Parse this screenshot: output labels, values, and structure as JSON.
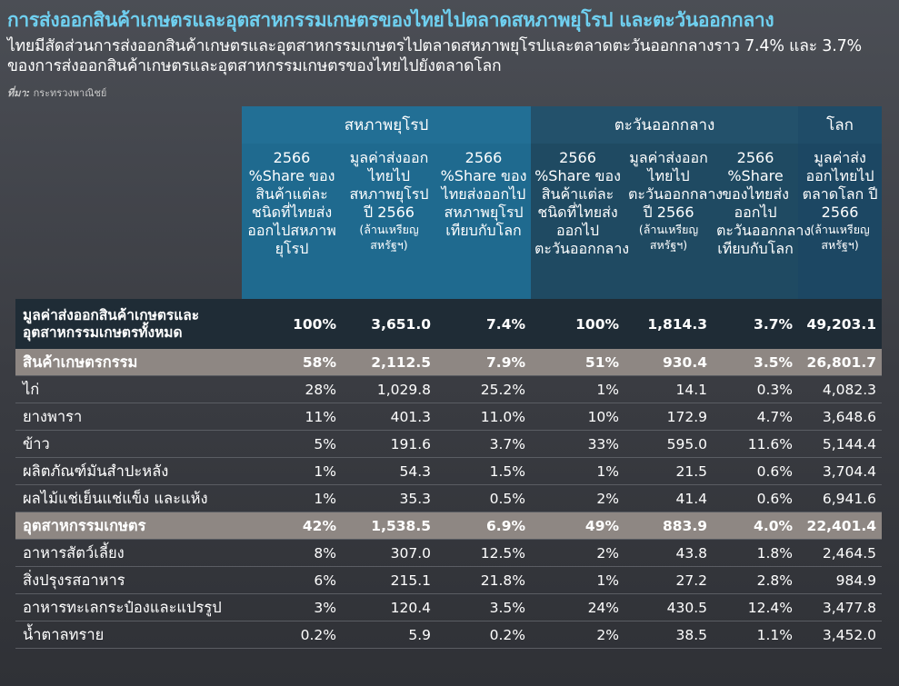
{
  "header": {
    "title": "การส่งออกสินค้าเกษตรและอุตสาหกรรมเกษตรของไทยไปตลาดสหภาพยุโรป และตะวันออกกลาง",
    "subtitle": "ไทยมีสัดส่วนการส่งออกสินค้าเกษตรและอุตสาหกรรมเกษตรไปตลาดสหภาพยุโรปและตลาดตะวันออกกลางราว 7.4% และ 3.7% ของการส่งออกสินค้าเกษตรและอุตสาหกรรมเกษตรของไทยไปยังตลาดโลก",
    "source_label": "ที่มา:",
    "source_value": "กระทรวงพาณิชย์"
  },
  "table": {
    "groups": [
      "สหภาพยุโรป",
      "ตะวันออกกลาง",
      "โลก"
    ],
    "columns": [
      {
        "main": "2566 %Share ของสินค้าแต่ละชนิดที่ไทยส่งออกไปสหภาพยุโรป",
        "unit": ""
      },
      {
        "main": "มูลค่าส่งออกไทยไปสหภาพยุโรป ปี 2566",
        "unit": "(ล้านเหรียญสหรัฐฯ)"
      },
      {
        "main": "2566 %Share ของไทยส่งออกไปสหภาพยุโรปเทียบกับโลก",
        "unit": ""
      },
      {
        "main": "2566 %Share ของสินค้าแต่ละชนิดที่ไทยส่งออกไปตะวันออกกลาง",
        "unit": ""
      },
      {
        "main": "มูลค่าส่งออกไทยไปตะวันออกกลาง ปี 2566",
        "unit": "(ล้านเหรียญสหรัฐฯ)"
      },
      {
        "main": "2566 %Share ของไทยส่งออกไปตะวันออกกลางเทียบกับโลก",
        "unit": ""
      },
      {
        "main": "มูลค่าส่งออกไทยไปตลาดโลก ปี 2566",
        "unit": "(ล้านเหรียญสหรัฐฯ)"
      }
    ],
    "rows": [
      {
        "type": "total",
        "label": "มูลค่าส่งออกสินค้าเกษตรและอุตสาหกรรมเกษตรทั้งหมด",
        "values": [
          "100%",
          "3,651.0",
          "7.4%",
          "100%",
          "1,814.3",
          "3.7%",
          "49,203.1"
        ]
      },
      {
        "type": "cat",
        "label": "สินค้าเกษตรกรรม",
        "values": [
          "58%",
          "2,112.5",
          "7.9%",
          "51%",
          "930.4",
          "3.5%",
          "26,801.7"
        ]
      },
      {
        "type": "item",
        "label": "ไก่",
        "values": [
          "28%",
          "1,029.8",
          "25.2%",
          "1%",
          "14.1",
          "0.3%",
          "4,082.3"
        ]
      },
      {
        "type": "item",
        "label": "ยางพารา",
        "values": [
          "11%",
          "401.3",
          "11.0%",
          "10%",
          "172.9",
          "4.7%",
          "3,648.6"
        ]
      },
      {
        "type": "item",
        "label": "ข้าว",
        "values": [
          "5%",
          "191.6",
          "3.7%",
          "33%",
          "595.0",
          "11.6%",
          "5,144.4"
        ]
      },
      {
        "type": "item",
        "label": "ผลิตภัณฑ์มันสำปะหลัง",
        "values": [
          "1%",
          "54.3",
          "1.5%",
          "1%",
          "21.5",
          "0.6%",
          "3,704.4"
        ]
      },
      {
        "type": "item",
        "label": "ผลไม้แช่เย็นแช่แข็ง และแห้ง",
        "values": [
          "1%",
          "35.3",
          "0.5%",
          "2%",
          "41.4",
          "0.6%",
          "6,941.6"
        ]
      },
      {
        "type": "cat",
        "label": "อุตสาหกรรมเกษตร",
        "values": [
          "42%",
          "1,538.5",
          "6.9%",
          "49%",
          "883.9",
          "4.0%",
          "22,401.4"
        ]
      },
      {
        "type": "item",
        "label": "อาหารสัตว์เลี้ยง",
        "values": [
          "8%",
          "307.0",
          "12.5%",
          "2%",
          "43.8",
          "1.8%",
          "2,464.5"
        ]
      },
      {
        "type": "item",
        "label": "สิ่งปรุงรสอาหาร",
        "values": [
          "6%",
          "215.1",
          "21.8%",
          "1%",
          "27.2",
          "2.8%",
          "984.9"
        ]
      },
      {
        "type": "item",
        "label": "อาหารทะเลกระป๋องและแปรรูป",
        "values": [
          "3%",
          "120.4",
          "3.5%",
          "24%",
          "430.5",
          "12.4%",
          "3,477.8"
        ]
      },
      {
        "type": "item",
        "label": "น้ำตาลทราย",
        "values": [
          "0.2%",
          "5.9",
          "0.2%",
          "2%",
          "38.5",
          "1.1%",
          "3,452.0"
        ]
      }
    ]
  }
}
